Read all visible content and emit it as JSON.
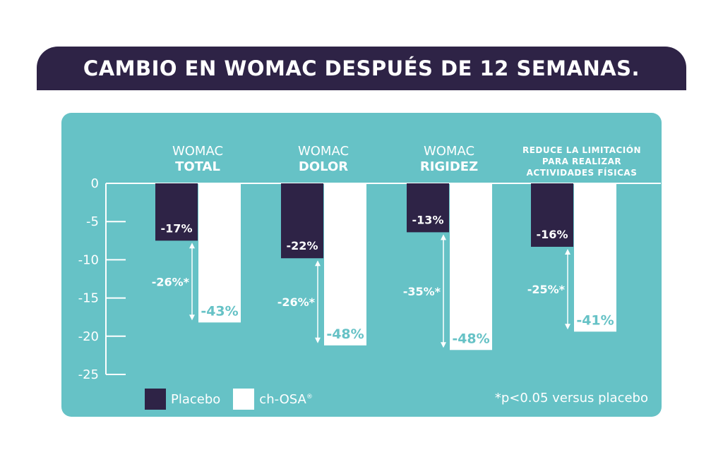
{
  "title": "CAMBIO EN WOMAC DESPUÉS DE 12 SEMANAS.",
  "footnote": "*p<0.05 versus placebo",
  "colors": {
    "title_bg": "#2e2346",
    "panel_bg": "#66c2c6",
    "placebo": "#2e2346",
    "ch_osa": "#ffffff",
    "ch_osa_label": "#66c2c6",
    "text": "#ffffff"
  },
  "chart_data": {
    "type": "bar",
    "categories": [
      {
        "lines": [
          "WOMAC",
          "TOTAL"
        ],
        "bold": [
          false,
          true
        ]
      },
      {
        "lines": [
          "WOMAC",
          "DOLOR"
        ],
        "bold": [
          false,
          true
        ]
      },
      {
        "lines": [
          "WOMAC",
          "RIGIDEZ"
        ],
        "bold": [
          false,
          true
        ]
      },
      {
        "lines": [
          "REDUCE LA LIMITACIÓN",
          "PARA REALIZAR",
          "ACTIVIDADES FÍSICAS"
        ],
        "bold": [
          true,
          true,
          true
        ],
        "small": true
      }
    ],
    "series": [
      {
        "name": "Placebo",
        "values": [
          -7.5,
          -9.8,
          -6.4,
          -8.3
        ],
        "labels": [
          "-17%",
          "-22%",
          "-13%",
          "-16%"
        ]
      },
      {
        "name": "ch-OSA",
        "values": [
          -18.2,
          -21.2,
          -21.8,
          -19.4
        ],
        "labels": [
          "-43%",
          "-48%",
          "-48%",
          "-41%"
        ]
      }
    ],
    "differences": [
      "-26%*",
      "-26%*",
      "-35%*",
      "-25%*"
    ],
    "yticks": [
      0,
      -5,
      -10,
      -15,
      -20,
      -25
    ],
    "ylim": [
      -25,
      0
    ],
    "legend": [
      {
        "name": "Placebo",
        "sup": ""
      },
      {
        "name": "ch-OSA",
        "sup": "®"
      }
    ]
  }
}
